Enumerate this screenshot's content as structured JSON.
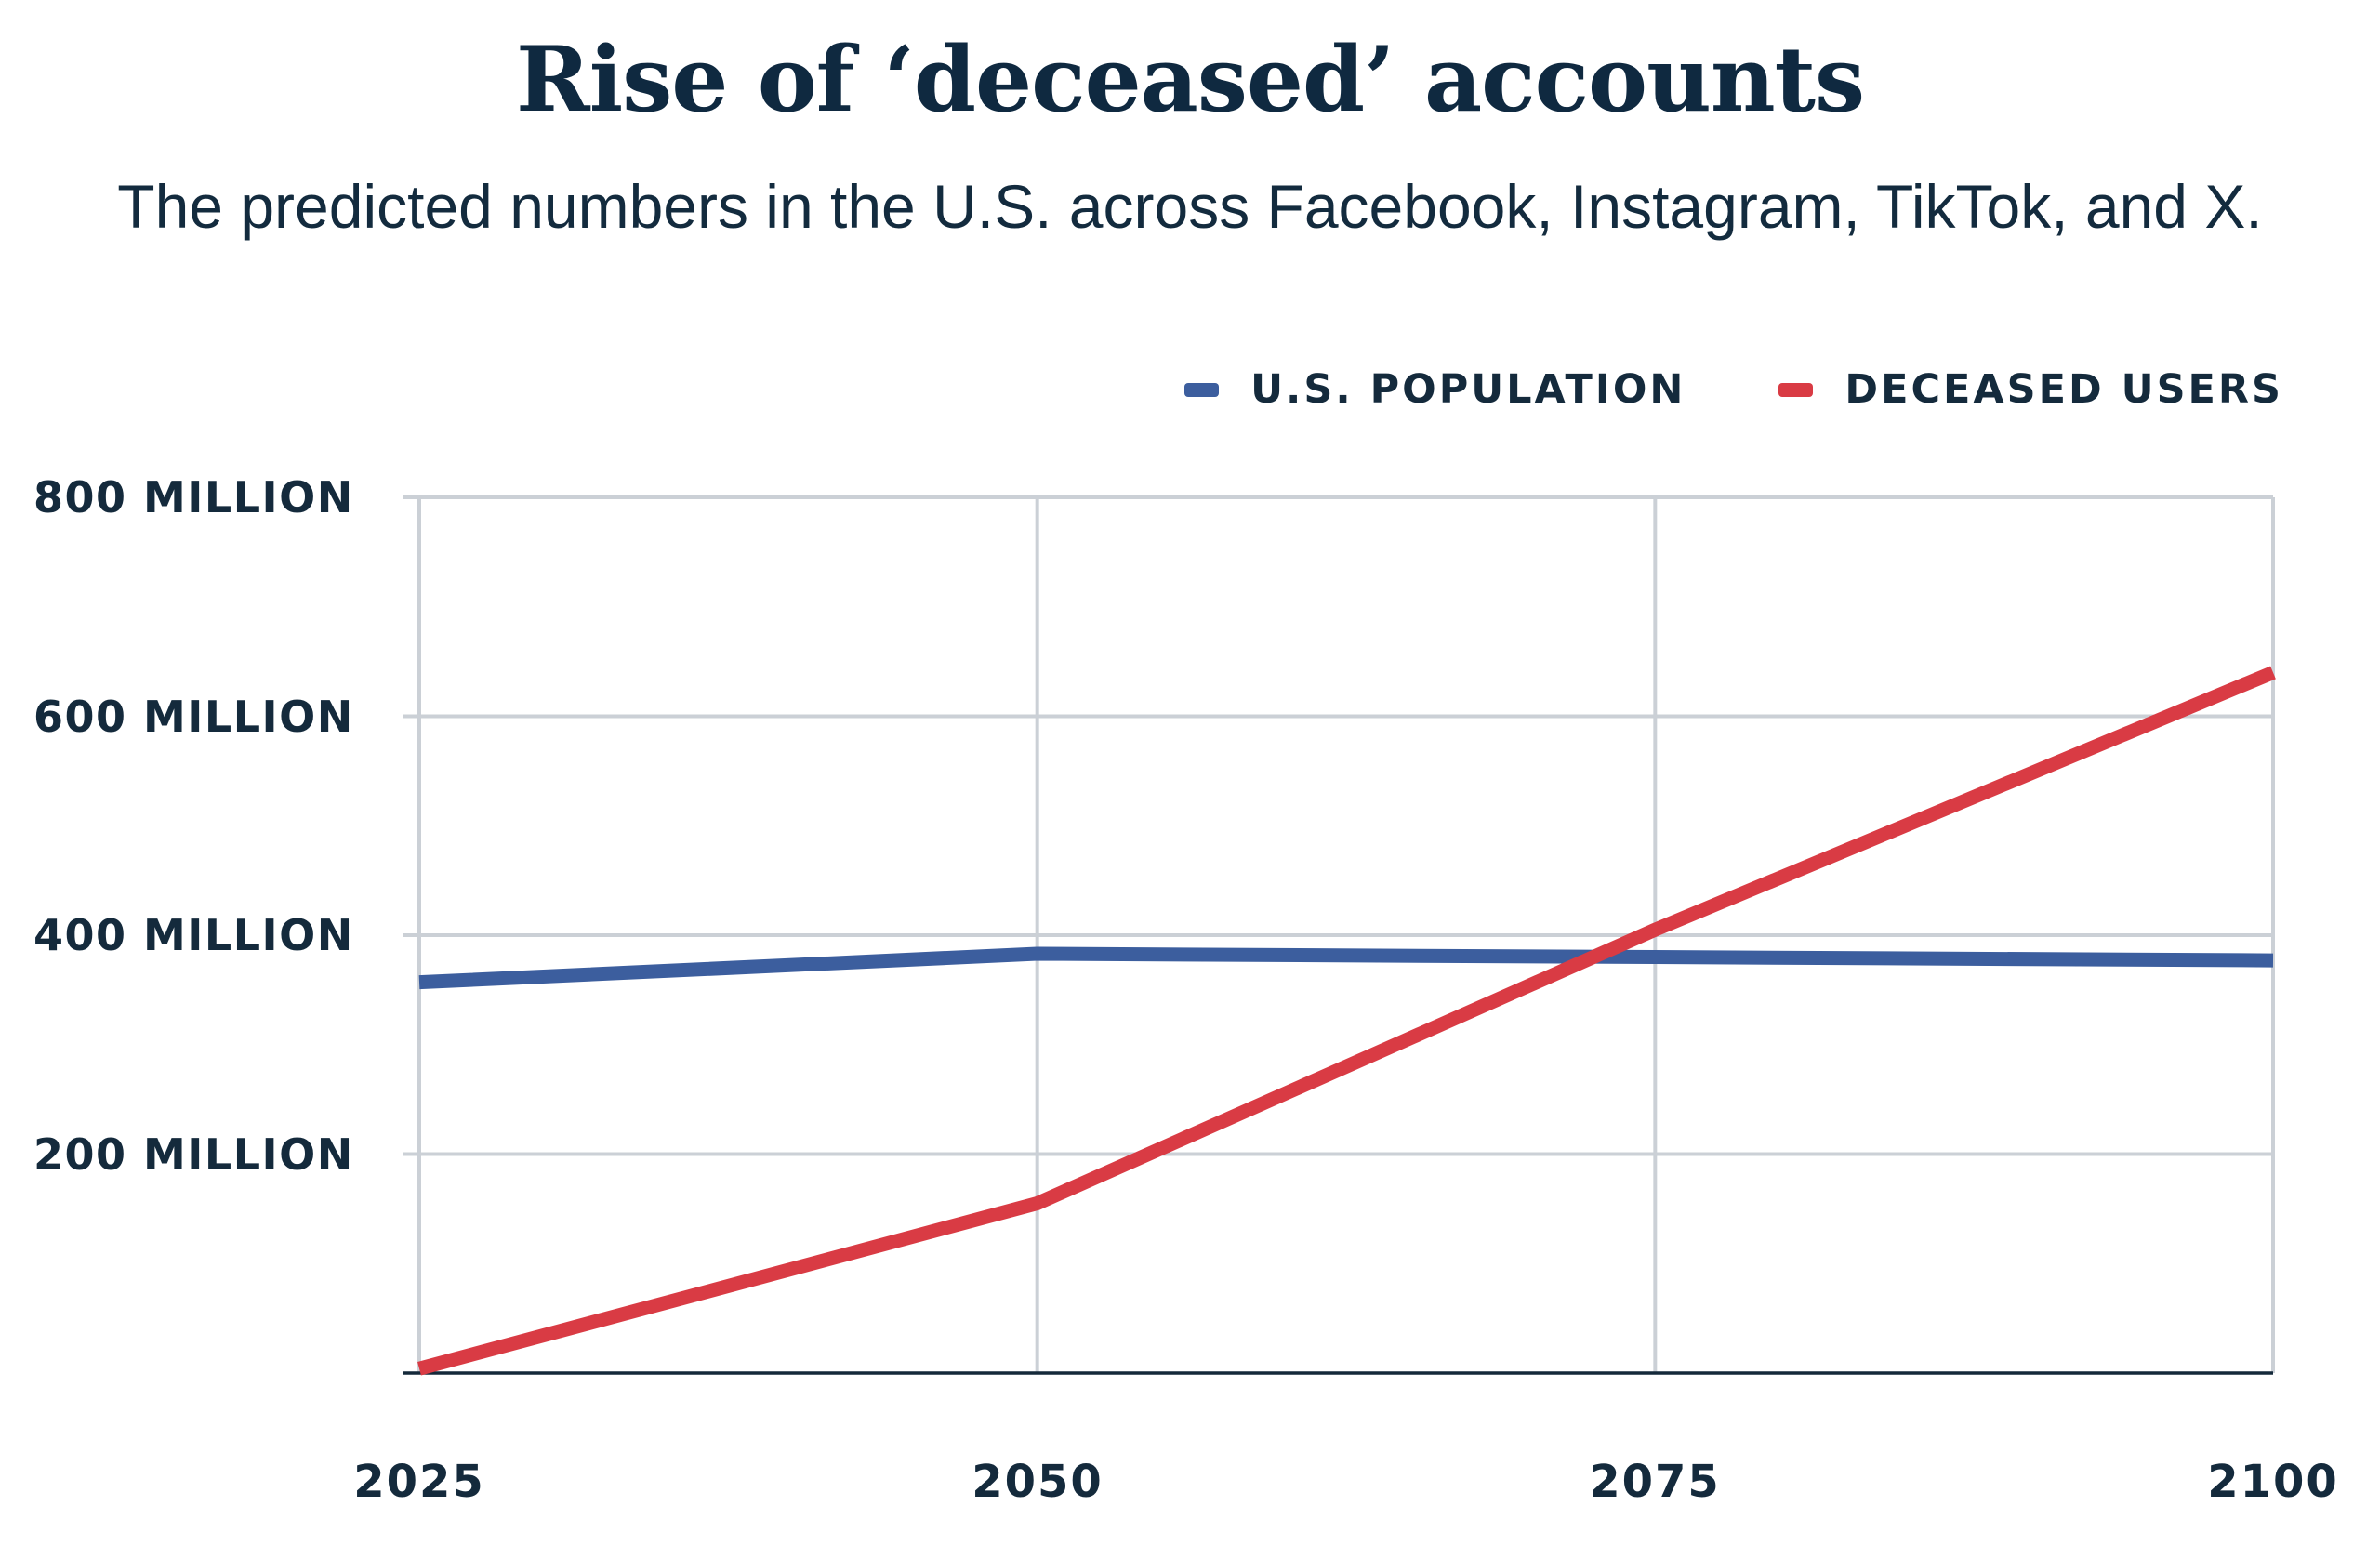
{
  "header": {
    "title": "Rise of ‘deceased’ accounts",
    "subtitle": "The predicted numbers in the U.S. across Facebook, Instagram, TikTok, and X."
  },
  "chart_data": {
    "type": "line",
    "title": "Rise of ‘deceased’ accounts",
    "subtitle": "The predicted numbers in the U.S. across Facebook, Instagram, TikTok, and X.",
    "x": [
      2025,
      2050,
      2075,
      2100
    ],
    "x_tick_labels": [
      "2025",
      "2050",
      "2075",
      "2100"
    ],
    "y_unit": "millions of accounts",
    "ylim": [
      0,
      800
    ],
    "y_ticks": [
      800,
      600,
      400,
      200
    ],
    "y_tick_labels": [
      "800 MILLION",
      "600 MILLION",
      "400 MILLION",
      "200 MILLION"
    ],
    "grid": true,
    "legend_position": "top-right",
    "series": [
      {
        "name": "U.S. POPULATION",
        "color": "#3c5e9e",
        "values": [
          357,
          383,
          380,
          377
        ]
      },
      {
        "name": "DECEASED USERS",
        "color": "#d93b44",
        "values": [
          4,
          155,
          405,
          640
        ]
      }
    ]
  },
  "colors": {
    "title_text": "#0f2940",
    "body_text": "#132b3e",
    "label_text": "#142a3c",
    "gridline": "#cbd0d6",
    "baseline": "#14293a",
    "background": "#ffffff"
  }
}
